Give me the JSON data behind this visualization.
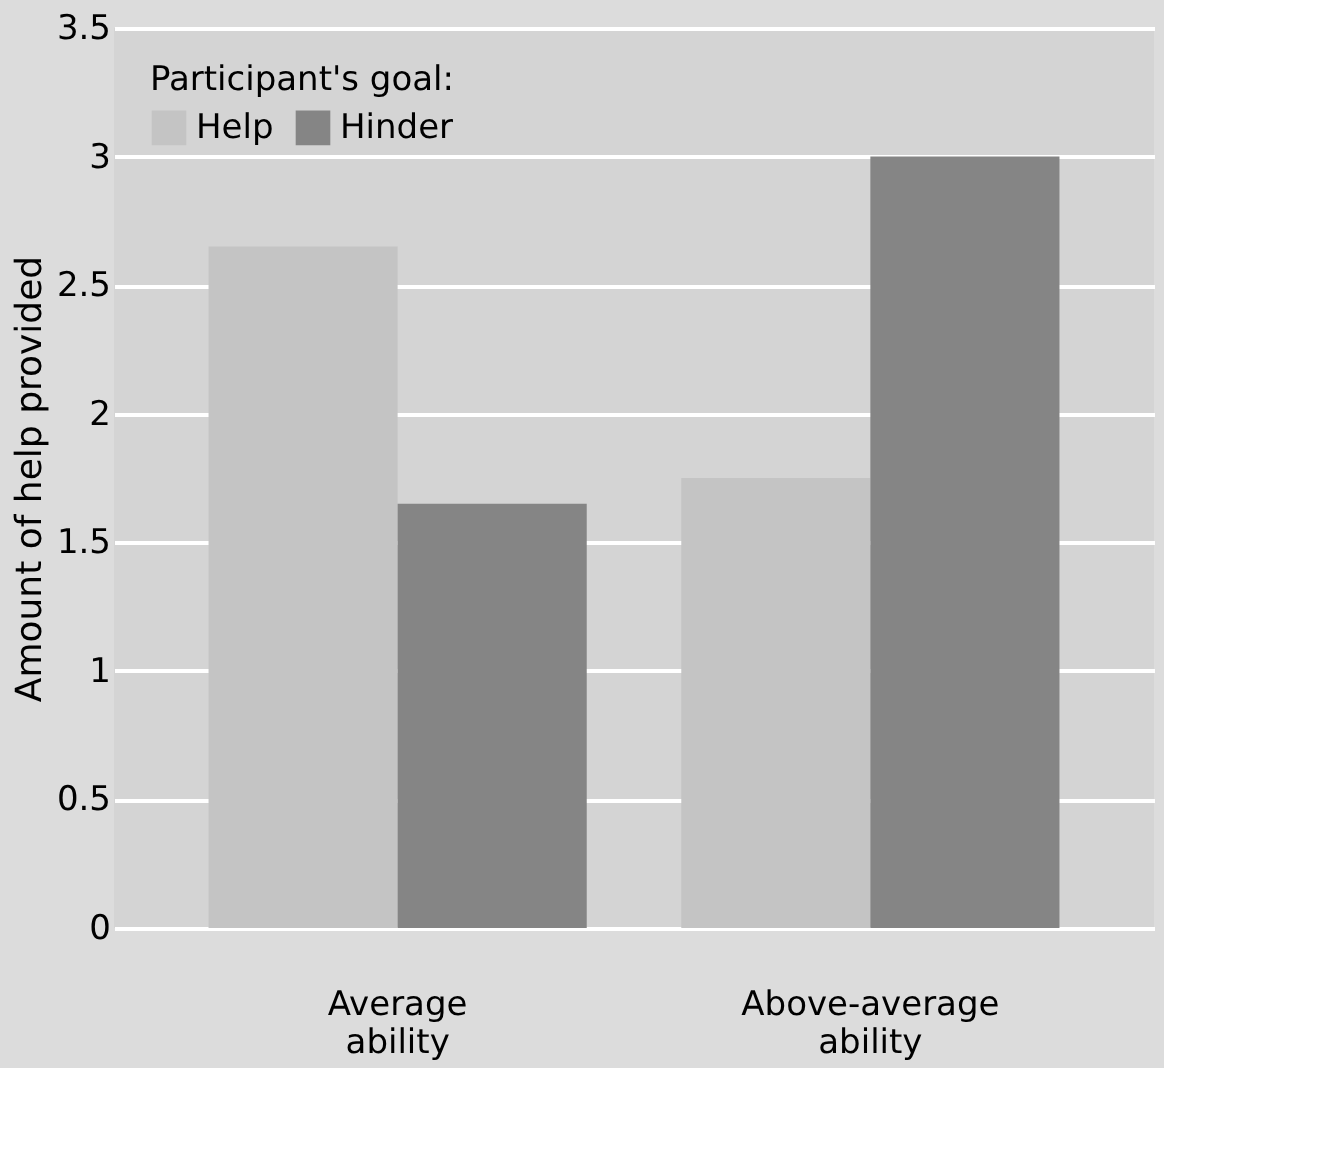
{
  "chart_data": {
    "type": "bar",
    "ylabel": "Amount of help provided",
    "legend_title": "Participant's goal:",
    "categories": [
      "Average ability",
      "Above-average ability"
    ],
    "series": [
      {
        "name": "Help",
        "color": "#c4c4c4",
        "values": [
          2.65,
          1.75
        ]
      },
      {
        "name": "Hinder",
        "color": "#858585",
        "values": [
          1.65,
          3.0
        ]
      }
    ],
    "ylim": [
      0,
      3.5
    ],
    "yticks": [
      0,
      0.5,
      1,
      1.5,
      2,
      2.5,
      3,
      3.5
    ],
    "grid": "y",
    "legend": "top left"
  }
}
